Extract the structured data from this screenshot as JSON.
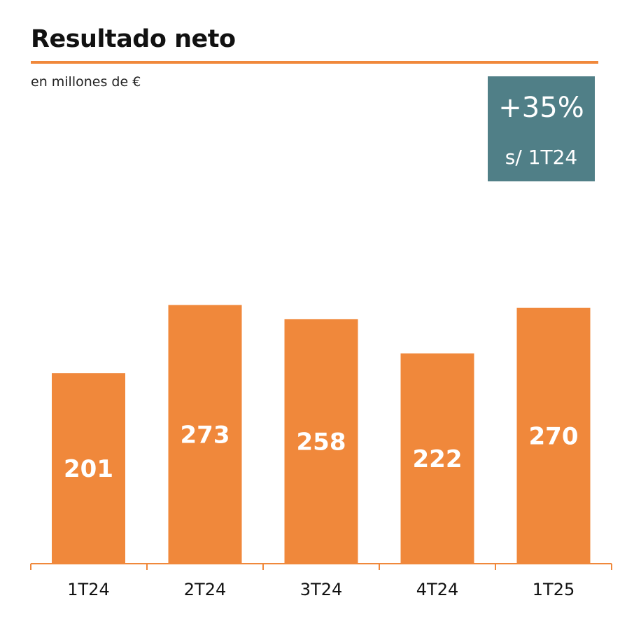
{
  "chart_data": {
    "type": "bar",
    "title": "Resultado neto",
    "subtitle": "en millones de €",
    "categories": [
      "1T24",
      "2T24",
      "3T24",
      "4T24",
      "1T25"
    ],
    "values": [
      201,
      273,
      258,
      222,
      270
    ],
    "bar_color": "#f0883b",
    "label_color": "#ffffff",
    "axis_color": "#f0883b",
    "grid": false,
    "callout": {
      "value": "+35%",
      "note": "s/ 1T24",
      "color": "#507f87"
    }
  }
}
